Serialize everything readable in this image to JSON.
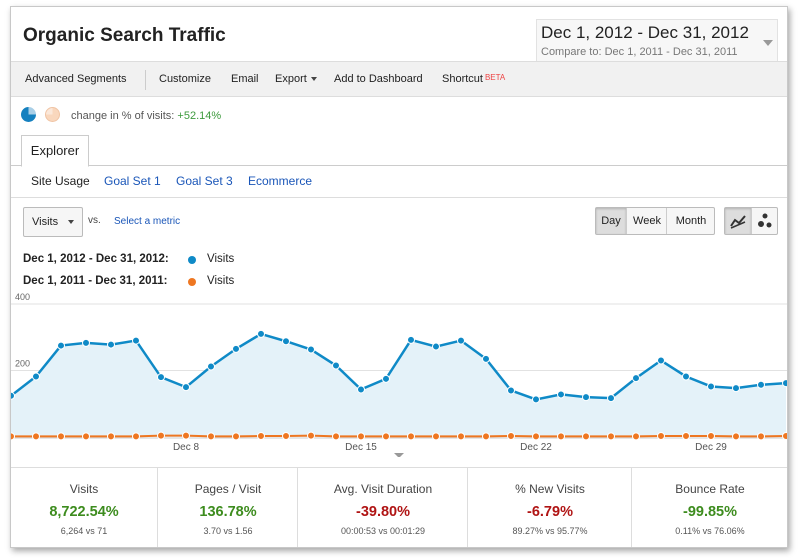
{
  "header": {
    "title": "Organic Search Traffic",
    "date_range": "Dec 1, 2012 - Dec 31, 2012",
    "compare_label": "Compare to:",
    "compare_range": "Dec 1, 2011 - Dec 31, 2011"
  },
  "toolbar": {
    "advanced_segments": "Advanced Segments",
    "customize": "Customize",
    "email": "Email",
    "export": "Export",
    "add_to_dashboard": "Add to Dashboard",
    "shortcut": "Shortcut",
    "beta": "BETA"
  },
  "summary": {
    "text": "change in % of visits:",
    "value": "+52.14%"
  },
  "tabs": {
    "explorer": "Explorer",
    "subtabs": [
      "Site Usage",
      "Goal Set 1",
      "Goal Set 3",
      "Ecommerce"
    ]
  },
  "controls": {
    "metric": "Visits",
    "vs": "vs.",
    "select_metric": "Select a metric",
    "periods": [
      "Day",
      "Week",
      "Month"
    ],
    "selected_period": "Day"
  },
  "legend": [
    {
      "range": "Dec 1, 2012 - Dec 31, 2012:",
      "name": "Visits",
      "color": "#0f8ac7"
    },
    {
      "range": "Dec 1, 2011 - Dec 31, 2011:",
      "name": "Visits",
      "color": "#ee7722"
    }
  ],
  "colors": {
    "series_2012": "#0f8ac7",
    "series_2011": "#ee7722",
    "area_fill": "#e4f2f9",
    "positive": "#3d8c1e",
    "negative": "#b01414"
  },
  "chart_data": {
    "type": "line",
    "y_ticks": [
      "400",
      "200"
    ],
    "ylim": [
      0,
      400
    ],
    "x_tick_labels": [
      {
        "day": 8,
        "label": "Dec 8"
      },
      {
        "day": 15,
        "label": "Dec 15"
      },
      {
        "day": 22,
        "label": "Dec 22"
      },
      {
        "day": 29,
        "label": "Dec 29"
      }
    ],
    "x": [
      1,
      2,
      3,
      4,
      5,
      6,
      7,
      8,
      9,
      10,
      11,
      12,
      13,
      14,
      15,
      16,
      17,
      18,
      19,
      20,
      21,
      22,
      23,
      24,
      25,
      26,
      27,
      28,
      29,
      30,
      31,
      32
    ],
    "series": [
      {
        "name": "Visits",
        "color": "#0f8ac7",
        "values": [
          124,
          182,
          275,
          283,
          278,
          290,
          180,
          150,
          212,
          265,
          310,
          288,
          263,
          215,
          143,
          175,
          292,
          272,
          290,
          235,
          140,
          113,
          128,
          120,
          117,
          177,
          230,
          182,
          152,
          147,
          157,
          162
        ]
      },
      {
        "name": "Visits",
        "color": "#ee7722",
        "values": [
          2,
          2,
          2,
          2,
          2,
          2,
          4,
          4,
          2,
          2,
          3,
          3,
          4,
          2,
          2,
          2,
          2,
          2,
          2,
          2,
          3,
          2,
          2,
          2,
          2,
          2,
          3,
          3,
          3,
          2,
          2,
          3
        ]
      }
    ]
  },
  "scorecards": [
    {
      "title": "Visits",
      "value": "8,722.54%",
      "sub": "6,264 vs 71",
      "tone": "pos"
    },
    {
      "title": "Pages / Visit",
      "value": "136.78%",
      "sub": "3.70 vs 1.56",
      "tone": "pos"
    },
    {
      "title": "Avg. Visit Duration",
      "value": "-39.80%",
      "sub": "00:00:53 vs 00:01:29",
      "tone": "neg"
    },
    {
      "title": "% New Visits",
      "value": "-6.79%",
      "sub": "89.27% vs 95.77%",
      "tone": "neg"
    },
    {
      "title": "Bounce Rate",
      "value": "-99.85%",
      "sub": "0.11% vs 76.06%",
      "tone": "pos"
    }
  ]
}
